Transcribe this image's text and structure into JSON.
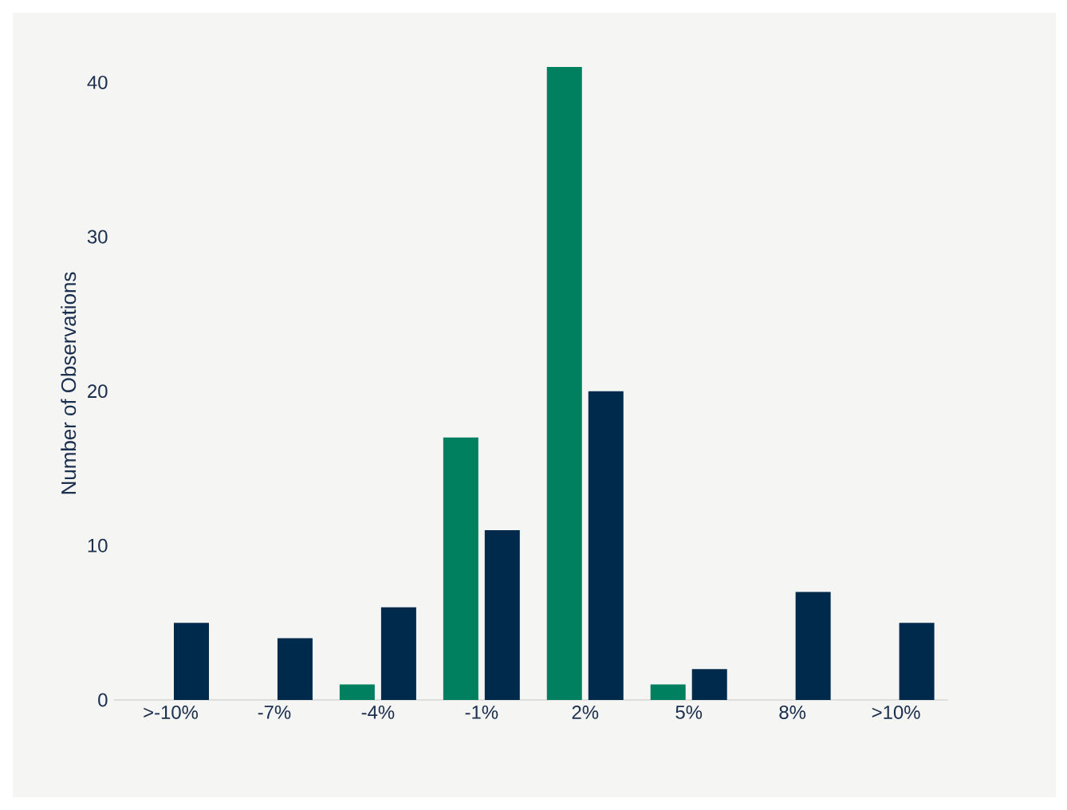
{
  "chart_data": {
    "type": "bar",
    "ylabel": "Number of Observations",
    "categories": [
      ">-10%",
      "-7%",
      "-4%",
      "-1%",
      "2%",
      "5%",
      "8%",
      ">10%"
    ],
    "series": [
      {
        "color": "#00805f",
        "values": [
          0,
          0,
          1,
          17,
          41,
          1,
          0,
          0
        ]
      },
      {
        "color": "#002a4c",
        "values": [
          5,
          4,
          6,
          11,
          20,
          2,
          7,
          5
        ]
      }
    ],
    "ylim": [
      0,
      41
    ],
    "yticks": [
      0,
      10,
      20,
      30,
      40
    ],
    "grid": false,
    "legend": false
  }
}
